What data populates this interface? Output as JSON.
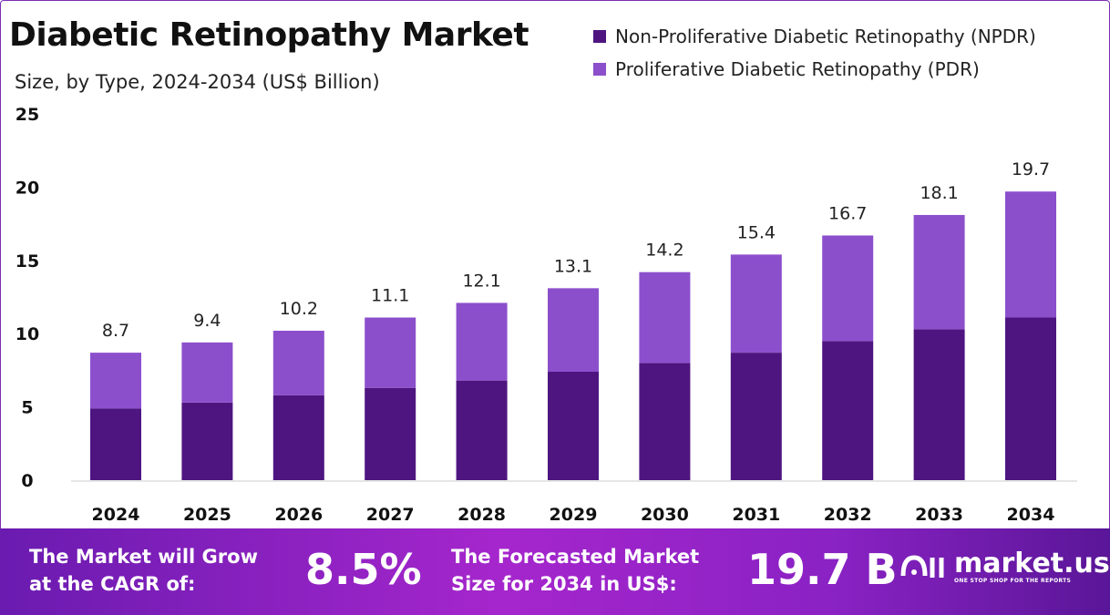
{
  "header": {
    "title": "Diabetic Retinopathy Market",
    "subtitle": "Size, by Type, 2024-2034 (US$ Billion)"
  },
  "chart_data": {
    "type": "bar",
    "stacked": true,
    "title": "Diabetic Retinopathy Market",
    "subtitle": "Size, by Type, 2024-2034 (US$ Billion)",
    "categories": [
      "2024",
      "2025",
      "2026",
      "2027",
      "2028",
      "2029",
      "2030",
      "2031",
      "2032",
      "2033",
      "2034"
    ],
    "series": [
      {
        "name": "Non-Proliferative Diabetic Retinopathy (NPDR)",
        "color": "#4E1580",
        "values": [
          4.9,
          5.3,
          5.8,
          6.3,
          6.8,
          7.4,
          8.0,
          8.7,
          9.5,
          10.3,
          11.1
        ]
      },
      {
        "name": "Proliferative Diabetic Retinopathy (PDR)",
        "color": "#8C4FCC",
        "values": [
          3.8,
          4.1,
          4.4,
          4.8,
          5.3,
          5.7,
          6.2,
          6.7,
          7.2,
          7.8,
          8.6
        ]
      }
    ],
    "totals": [
      "8.7",
      "9.4",
      "10.2",
      "11.1",
      "12.1",
      "13.1",
      "14.2",
      "15.4",
      "16.7",
      "18.1",
      "19.7"
    ],
    "ylim": [
      0,
      25
    ],
    "yticks": [
      "0",
      "5",
      "10",
      "15",
      "20",
      "25"
    ],
    "grid": false,
    "legend": "top-right"
  },
  "footer": {
    "cagr_label_1": "The Market will Grow",
    "cagr_label_2": "at the CAGR of:",
    "cagr_value": "8.5%",
    "forecast_label_1": "The Forecasted Market",
    "forecast_label_2": "Size for 2034 in US$:",
    "forecast_value": "19.7 B",
    "logo_text": "market.us",
    "logo_tagline": "ONE STOP SHOP FOR THE REPORTS"
  }
}
